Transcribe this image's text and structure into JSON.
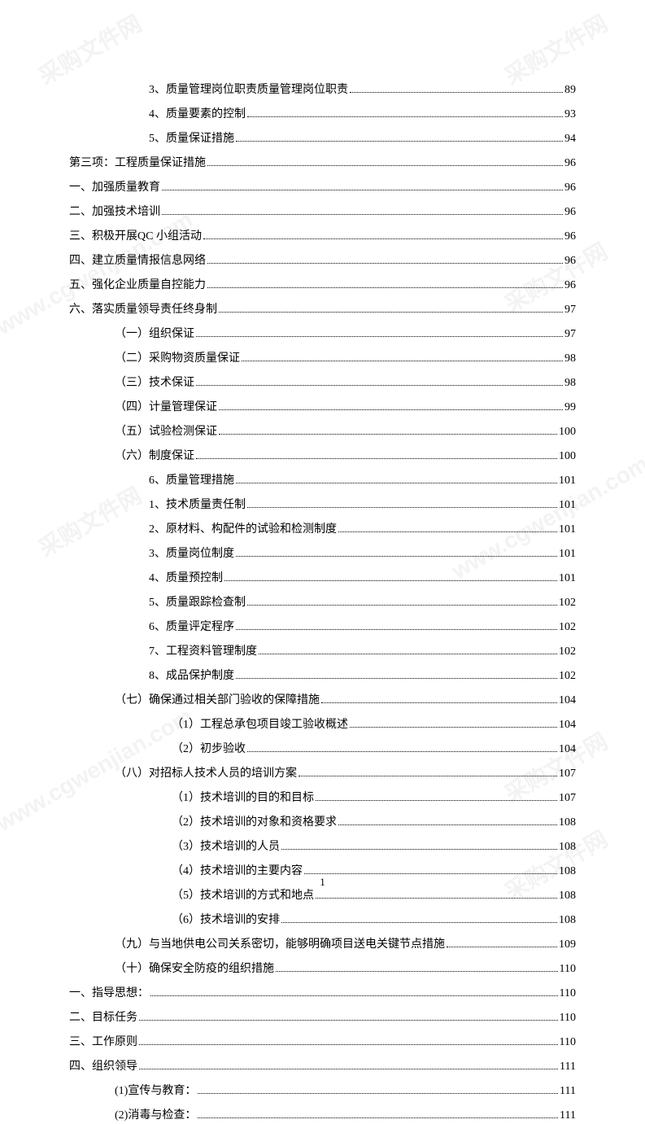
{
  "watermark_text": "采购文件网",
  "watermark_url": "www.cgwenjian.com",
  "page_number": "1",
  "toc_entries": [
    {
      "indent": 2,
      "text": "3、质量管理岗位职责质量管理岗位职责",
      "page": "89"
    },
    {
      "indent": 2,
      "text": "4、质量要素的控制",
      "page": "93"
    },
    {
      "indent": 2,
      "text": "5、质量保证措施",
      "page": "94"
    },
    {
      "indent": 0,
      "text": "第三项：工程质量保证措施",
      "page": "96"
    },
    {
      "indent": 0,
      "text": "一、加强质量教育",
      "page": "96"
    },
    {
      "indent": 0,
      "text": "二、加强技术培训",
      "page": "96"
    },
    {
      "indent": 0,
      "text": "三、积极开展QC 小组活动",
      "page": "96"
    },
    {
      "indent": 0,
      "text": "四、建立质量情报信息网络",
      "page": "96"
    },
    {
      "indent": 0,
      "text": "五、强化企业质量自控能力",
      "page": "96"
    },
    {
      "indent": 0,
      "text": "六、落实质量领导责任终身制",
      "page": "97"
    },
    {
      "indent": 1,
      "text": "（一）组织保证",
      "page": "97"
    },
    {
      "indent": 1,
      "text": "（二）采购物资质量保证",
      "page": "98"
    },
    {
      "indent": 1,
      "text": "（三）技术保证",
      "page": "98"
    },
    {
      "indent": 1,
      "text": "（四）计量管理保证",
      "page": "99"
    },
    {
      "indent": 1,
      "text": "（五）试验检测保证",
      "page": "100"
    },
    {
      "indent": 1,
      "text": "（六）制度保证",
      "page": "100"
    },
    {
      "indent": 2,
      "text": "6、质量管理措施",
      "page": "101"
    },
    {
      "indent": 2,
      "text": "1、技术质量责任制",
      "page": "101"
    },
    {
      "indent": 2,
      "text": "2、原材料、构配件的试验和检测制度",
      "page": "101"
    },
    {
      "indent": 2,
      "text": "3、质量岗位制度",
      "page": "101"
    },
    {
      "indent": 2,
      "text": "4、质量预控制",
      "page": "101"
    },
    {
      "indent": 2,
      "text": "5、质量跟踪检查制",
      "page": "102"
    },
    {
      "indent": 2,
      "text": "6、质量评定程序",
      "page": "102"
    },
    {
      "indent": 2,
      "text": "7、工程资料管理制度",
      "page": "102"
    },
    {
      "indent": 2,
      "text": "8、成品保护制度",
      "page": "102"
    },
    {
      "indent": 1,
      "text": "（七）确保通过相关部门验收的保障措施",
      "page": "104"
    },
    {
      "indent": 3,
      "text": "（1）工程总承包项目竣工验收概述",
      "page": "104"
    },
    {
      "indent": 3,
      "text": "（2）初步验收",
      "page": "104"
    },
    {
      "indent": 1,
      "text": "（八）对招标人技术人员的培训方案",
      "page": "107"
    },
    {
      "indent": 3,
      "text": "（1）技术培训的目的和目标",
      "page": "107"
    },
    {
      "indent": 3,
      "text": "（2）技术培训的对象和资格要求",
      "page": "108"
    },
    {
      "indent": 3,
      "text": "（3）技术培训的人员",
      "page": "108"
    },
    {
      "indent": 3,
      "text": "（4）技术培训的主要内容",
      "page": "108"
    },
    {
      "indent": 3,
      "text": "（5）技术培训的方式和地点",
      "page": "108"
    },
    {
      "indent": 3,
      "text": "（6）技术培训的安排",
      "page": "108"
    },
    {
      "indent": 1,
      "text": "（九）与当地供电公司关系密切，能够明确项目送电关键节点措施",
      "page": "109"
    },
    {
      "indent": 1,
      "text": "（十）确保安全防疫的组织措施",
      "page": "110"
    },
    {
      "indent": 0,
      "text": "一、指导思想：",
      "page": "110"
    },
    {
      "indent": 0,
      "text": "二、目标任务",
      "page": "110"
    },
    {
      "indent": 0,
      "text": "三、工作原则",
      "page": "110"
    },
    {
      "indent": 0,
      "text": "四、组织领导",
      "page": "111"
    },
    {
      "indent": 1,
      "text": "(1)宣传与教育：",
      "page": "111"
    },
    {
      "indent": 1,
      "text": "(2)消毒与检查：",
      "page": "111"
    }
  ]
}
